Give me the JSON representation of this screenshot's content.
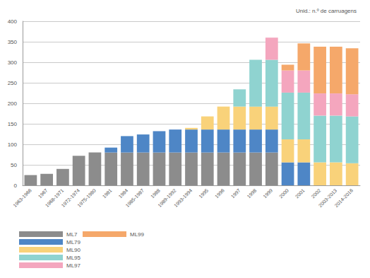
{
  "chart_data": {
    "type": "bar",
    "stacked": true,
    "grid": true,
    "legend": "bottom-left",
    "title": "Unid.: n.º de carruagens",
    "categories": [
      "1963-1966",
      "1967",
      "1968-1971",
      "1972-1974",
      "1975-1980",
      "1981",
      "1984",
      "1985-1987",
      "1988",
      "1989-1992",
      "1993-1994",
      "1995",
      "1996",
      "1997",
      "1998",
      "1999",
      "2000",
      "2001",
      "2002",
      "2003-2013",
      "2014-2016"
    ],
    "ylim": [
      0,
      400
    ],
    "yticks": [
      0,
      50,
      100,
      150,
      200,
      250,
      300,
      350,
      400
    ],
    "series": [
      {
        "name": "ML7",
        "color": "#8c8c8c",
        "values": [
          25,
          28,
          40,
          72,
          80,
          80,
          80,
          80,
          80,
          80,
          80,
          80,
          80,
          80,
          80,
          80,
          0,
          0,
          0,
          0,
          0
        ]
      },
      {
        "name": "ML79",
        "color": "#4e86c6",
        "values": [
          0,
          0,
          0,
          0,
          0,
          12,
          40,
          44,
          52,
          56,
          56,
          56,
          56,
          56,
          56,
          56,
          56,
          56,
          0,
          0,
          0
        ]
      },
      {
        "name": "ML90",
        "color": "#f9d27a",
        "values": [
          0,
          0,
          0,
          0,
          0,
          0,
          0,
          0,
          0,
          0,
          4,
          32,
          56,
          56,
          56,
          56,
          56,
          56,
          56,
          56,
          54
        ]
      },
      {
        "name": "ML95",
        "color": "#8fd3d0",
        "values": [
          0,
          0,
          0,
          0,
          0,
          0,
          0,
          0,
          0,
          0,
          0,
          0,
          0,
          42,
          114,
          114,
          114,
          114,
          114,
          114,
          114
        ]
      },
      {
        "name": "ML97",
        "color": "#f4a6be",
        "values": [
          0,
          0,
          0,
          0,
          0,
          0,
          0,
          0,
          0,
          0,
          0,
          0,
          0,
          0,
          0,
          54,
          54,
          54,
          54,
          54,
          54
        ]
      },
      {
        "name": "ML99",
        "color": "#f5a86a",
        "values": [
          0,
          0,
          0,
          0,
          0,
          0,
          0,
          0,
          0,
          0,
          0,
          0,
          0,
          0,
          0,
          0,
          14,
          66,
          114,
          114,
          112
        ]
      }
    ]
  }
}
